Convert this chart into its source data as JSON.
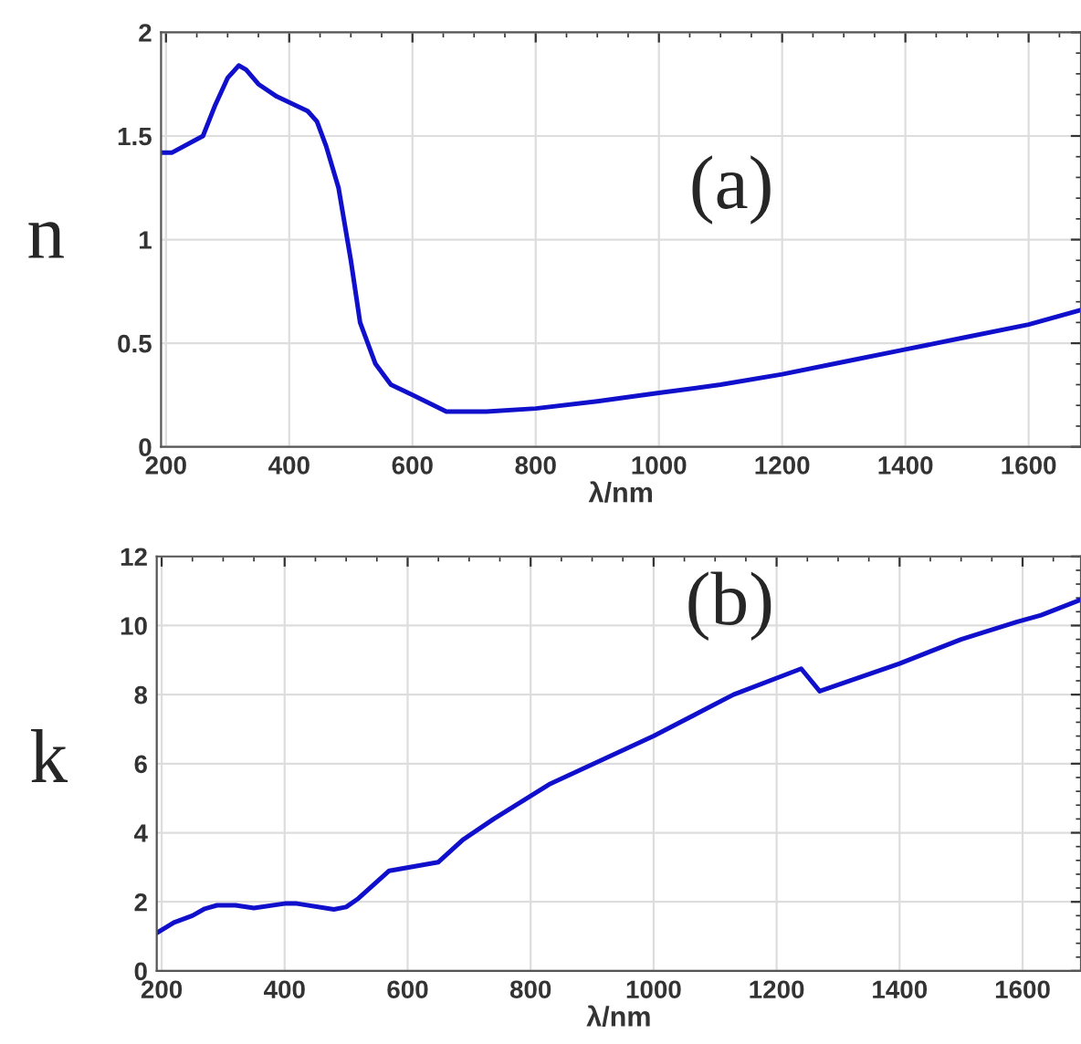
{
  "chart_data": [
    {
      "type": "line",
      "xlabel": "λ/nm",
      "ylabel": "n",
      "annotations": [
        "(a)"
      ],
      "xlim": [
        192,
        1685
      ],
      "xticks": [
        200,
        400,
        600,
        800,
        1000,
        1200,
        1400,
        1600
      ],
      "ylim": [
        0,
        2
      ],
      "yticks": [
        0,
        0.5,
        1,
        1.5,
        2
      ],
      "grid": true,
      "marker": "none",
      "line_style": "solid",
      "series": [
        {
          "color": "#1010cc",
          "x": [
            192,
            210,
            260,
            280,
            300,
            318,
            330,
            350,
            380,
            430,
            445,
            460,
            480,
            500,
            515,
            540,
            565,
            600,
            655,
            720,
            800,
            900,
            1000,
            1100,
            1200,
            1300,
            1400,
            1500,
            1600,
            1685
          ],
          "values": [
            1.42,
            1.42,
            1.5,
            1.65,
            1.78,
            1.84,
            1.82,
            1.75,
            1.69,
            1.62,
            1.57,
            1.45,
            1.25,
            0.9,
            0.6,
            0.4,
            0.3,
            0.25,
            0.17,
            0.17,
            0.185,
            0.22,
            0.26,
            0.3,
            0.35,
            0.41,
            0.47,
            0.53,
            0.59,
            0.66
          ]
        }
      ]
    },
    {
      "type": "line",
      "xlabel": "λ/nm",
      "ylabel": "k",
      "annotations": [
        "(b)"
      ],
      "xlim": [
        192,
        1695
      ],
      "xticks": [
        200,
        400,
        600,
        800,
        1000,
        1200,
        1400,
        1600
      ],
      "ylim": [
        0,
        12
      ],
      "yticks": [
        0,
        2,
        4,
        6,
        8,
        10,
        12
      ],
      "grid": true,
      "marker": "none",
      "line_style": "solid",
      "series": [
        {
          "color": "#1010cc",
          "x": [
            192,
            220,
            250,
            270,
            290,
            320,
            350,
            400,
            420,
            480,
            500,
            520,
            570,
            650,
            690,
            740,
            830,
            1000,
            1130,
            1240,
            1270,
            1400,
            1500,
            1590,
            1630,
            1695
          ],
          "values": [
            1.1,
            1.4,
            1.6,
            1.8,
            1.9,
            1.9,
            1.82,
            1.95,
            1.95,
            1.78,
            1.85,
            2.1,
            2.9,
            3.15,
            3.8,
            4.4,
            5.4,
            6.8,
            8.0,
            8.75,
            8.1,
            8.9,
            9.6,
            10.1,
            10.3,
            10.75
          ]
        }
      ]
    }
  ]
}
